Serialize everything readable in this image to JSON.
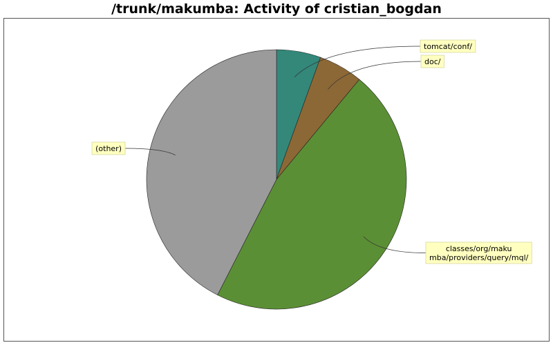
{
  "chart_data": {
    "type": "pie",
    "title": "/trunk/makumba: Activity of cristian_bogdan",
    "start_angle_deg": 90,
    "direction": "clockwise",
    "slices": [
      {
        "label": "tomcat/conf/",
        "value": 5.5,
        "color": "#33887a"
      },
      {
        "label": "doc/",
        "value": 5.5,
        "color": "#8c6836"
      },
      {
        "label": "classes/org/makumba/providers/query/mql/",
        "label_lines": [
          "classes/org/maku",
          "mba/providers/query/mql/"
        ],
        "value": 46.5,
        "color": "#5b8f35"
      },
      {
        "label": "(other)",
        "label_lines": [
          "(other)"
        ],
        "value": 42.5,
        "color": "#9b9b9b"
      }
    ],
    "legend": "none"
  }
}
